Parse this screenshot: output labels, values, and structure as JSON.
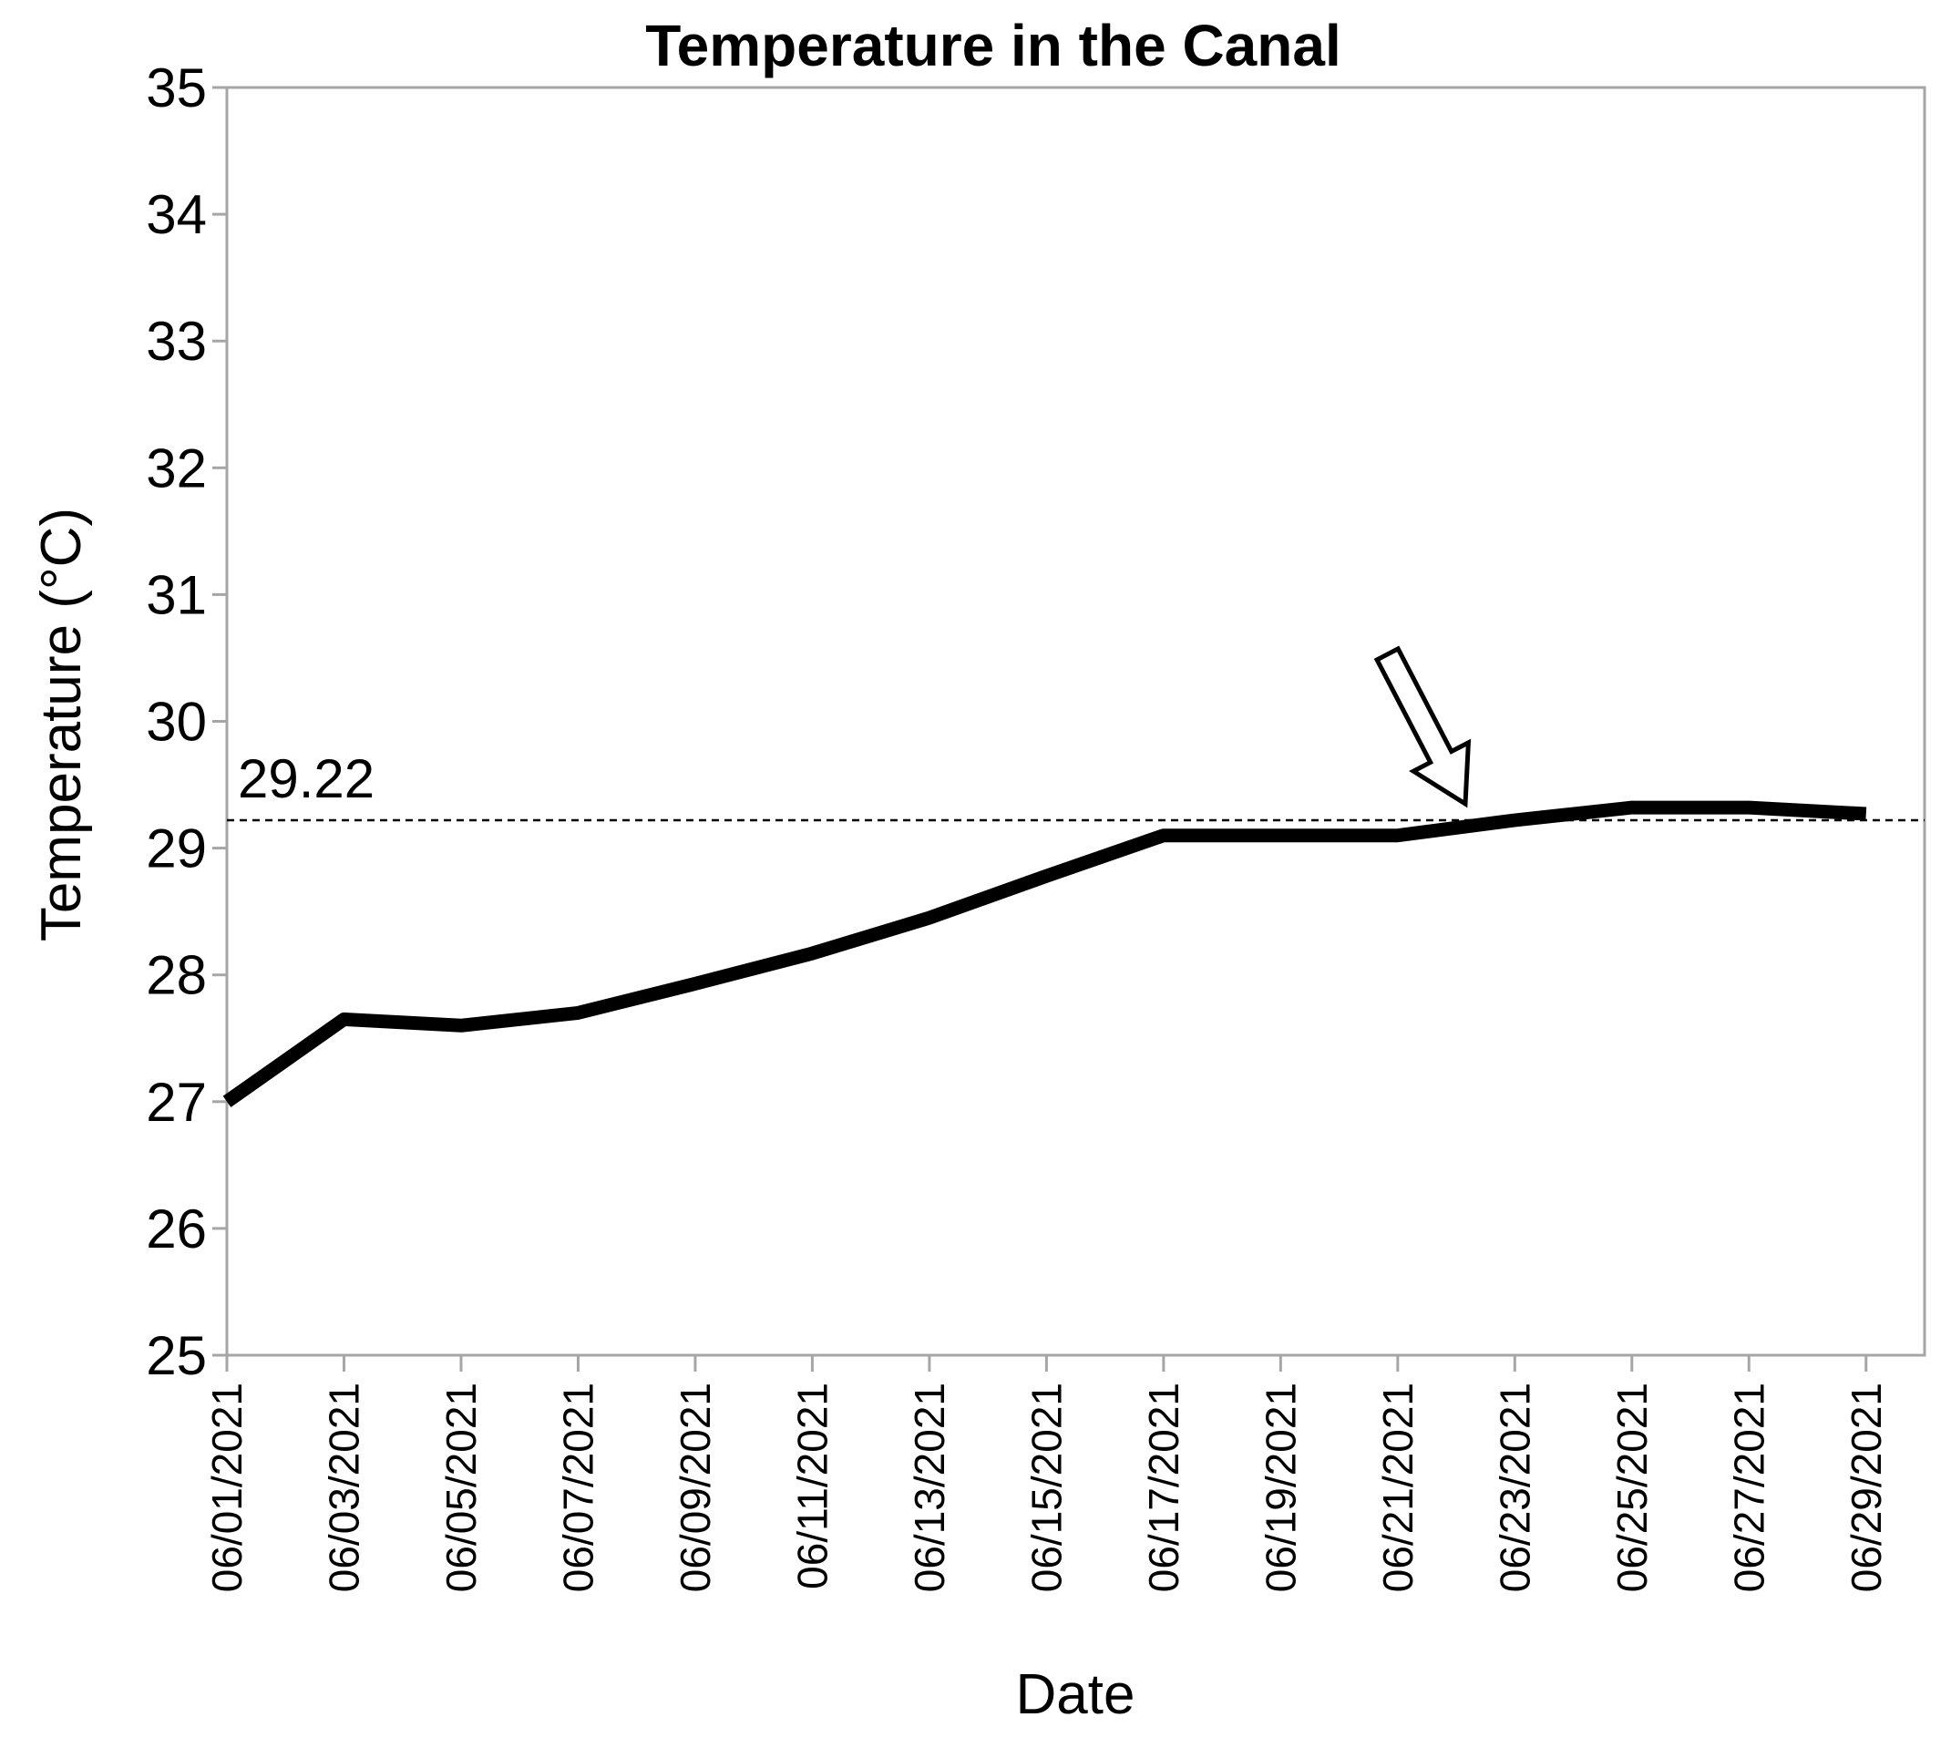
{
  "chart_data": {
    "type": "line",
    "title": "Temperature in the Canal",
    "xlabel": "Date",
    "ylabel": "Temperature (°C)",
    "x_tick_labels": [
      "06/01/2021",
      "06/03/2021",
      "06/05/2021",
      "06/07/2021",
      "06/09/2021",
      "06/11/2021",
      "06/13/2021",
      "06/15/2021",
      "06/17/2021",
      "06/19/2021",
      "06/21/2021",
      "06/23/2021",
      "06/25/2021",
      "06/27/2021",
      "06/29/2021"
    ],
    "y_ticks": [
      25,
      26,
      27,
      28,
      29,
      30,
      31,
      32,
      33,
      34,
      35
    ],
    "ylim": [
      25,
      35
    ],
    "xlim": [
      "06/01/2021",
      "06/30/2021"
    ],
    "grid": false,
    "line_color": "#000000",
    "frame_color": "#a6a6a6",
    "series": [
      {
        "x": [
          "06/01/2021",
          "06/03/2021",
          "06/05/2021",
          "06/07/2021",
          "06/09/2021",
          "06/11/2021",
          "06/13/2021",
          "06/15/2021",
          "06/17/2021",
          "06/19/2021",
          "06/21/2021",
          "06/23/2021",
          "06/25/2021",
          "06/27/2021",
          "06/29/2021"
        ],
        "values": [
          27.0,
          27.65,
          27.6,
          27.7,
          27.93,
          28.17,
          28.45,
          28.78,
          29.1,
          29.1,
          29.1,
          29.22,
          29.32,
          29.32,
          29.27
        ]
      }
    ],
    "reference_line": {
      "value": 29.22,
      "label": "29.22",
      "style": "dashed"
    },
    "annotations": [
      {
        "type": "arrow",
        "points_to": "06/23/2021"
      }
    ]
  }
}
